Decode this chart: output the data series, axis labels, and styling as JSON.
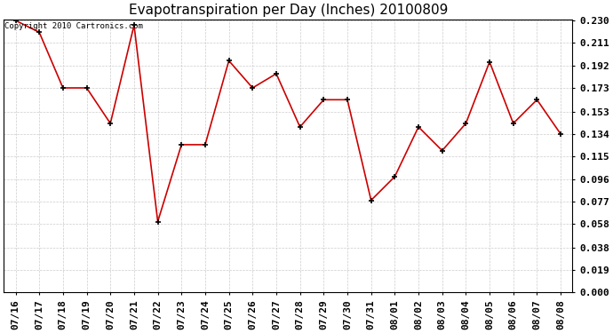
{
  "title": "Evapotranspiration per Day (Inches) 20100809",
  "copyright_text": "Copyright 2010 Cartronics.com",
  "x_labels": [
    "07/16",
    "07/17",
    "07/18",
    "07/19",
    "07/20",
    "07/21",
    "07/22",
    "07/23",
    "07/24",
    "07/25",
    "07/26",
    "07/27",
    "07/28",
    "07/29",
    "07/30",
    "07/31",
    "08/01",
    "08/02",
    "08/03",
    "08/04",
    "08/05",
    "08/06",
    "08/07",
    "08/08"
  ],
  "y_values": [
    0.23,
    0.22,
    0.173,
    0.173,
    0.143,
    0.226,
    0.06,
    0.125,
    0.125,
    0.196,
    0.173,
    0.185,
    0.14,
    0.163,
    0.163,
    0.078,
    0.098,
    0.14,
    0.12,
    0.143,
    0.195,
    0.143,
    0.163,
    0.134
  ],
  "line_color": "#cc0000",
  "marker_color": "#000000",
  "bg_color": "#ffffff",
  "grid_color": "#cccccc",
  "y_ticks": [
    0.0,
    0.019,
    0.038,
    0.058,
    0.077,
    0.096,
    0.115,
    0.134,
    0.153,
    0.173,
    0.192,
    0.211,
    0.23
  ],
  "ylim": [
    0.0,
    0.23
  ],
  "title_fontsize": 11,
  "tick_fontsize": 8,
  "copyright_fontsize": 6.5
}
